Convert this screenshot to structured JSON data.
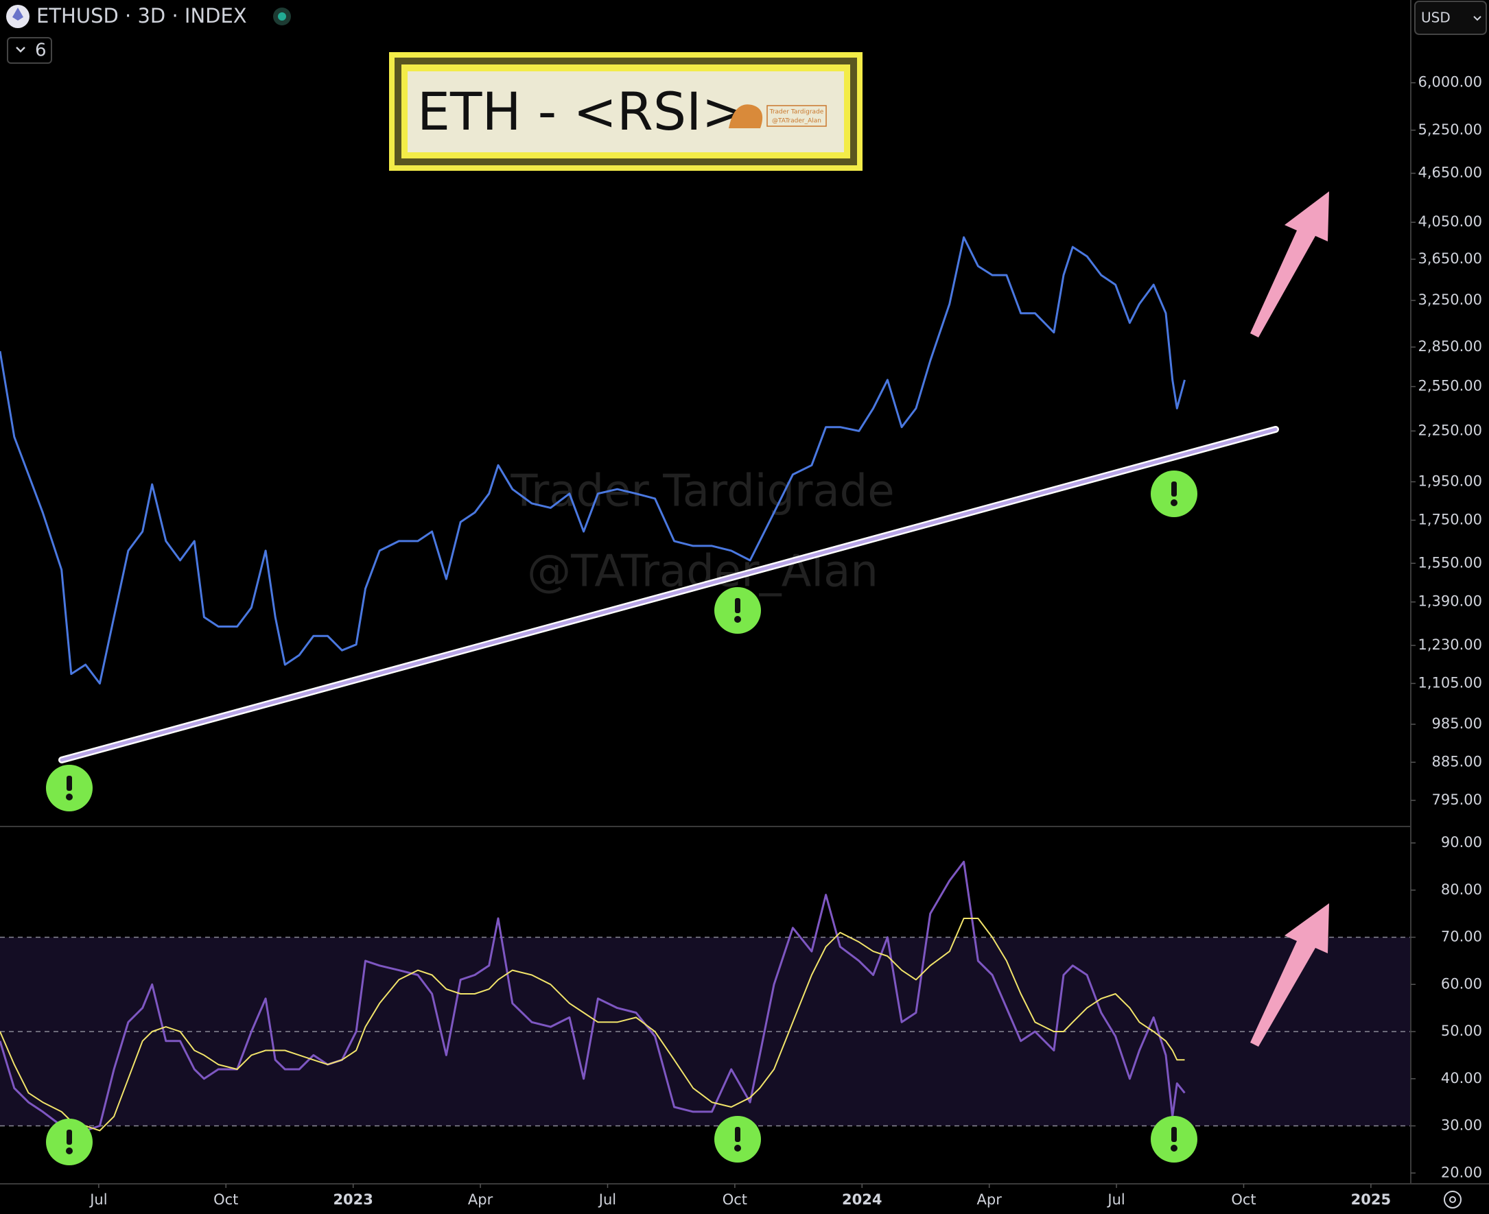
{
  "header": {
    "symbol": "ETHUSD · 3D · INDEX",
    "indicators": 6,
    "currency": "USD"
  },
  "title_box": {
    "title": "ETH - <RSI>",
    "logo_name": "Trader Tardigrade",
    "logo_handle": "@TATrader_Alan"
  },
  "watermark": {
    "line1": "Trader Tardigrade",
    "line2": "@TATrader_Alan"
  },
  "chart_data": [
    {
      "type": "line",
      "log_scale": true,
      "x": [
        2022.306,
        2022.334,
        2022.362,
        2022.39,
        2022.427,
        2022.446,
        2022.474,
        2022.502,
        2022.53,
        2022.558,
        2022.586,
        2022.605,
        2022.632,
        2022.66,
        2022.688,
        2022.707,
        2022.735,
        2022.772,
        2022.8,
        2022.828,
        2022.847,
        2022.866,
        2022.894,
        2022.922,
        2022.95,
        2022.978,
        2023.006,
        2023.024,
        2023.052,
        2023.09,
        2023.127,
        2023.155,
        2023.183,
        2023.211,
        2023.239,
        2023.267,
        2023.285,
        2023.313,
        2023.351,
        2023.388,
        2023.425,
        2023.453,
        2023.481,
        2023.519,
        2023.556,
        2023.593,
        2023.631,
        2023.668,
        2023.705,
        2023.743,
        2023.78,
        2023.799,
        2023.827,
        2023.864,
        2023.901,
        2023.929,
        2023.957,
        2023.994,
        2024.022,
        2024.05,
        2024.078,
        2024.106,
        2024.134,
        2024.172,
        2024.2,
        2024.228,
        2024.256,
        2024.284,
        2024.312,
        2024.34,
        2024.377,
        2024.396,
        2024.414,
        2024.442,
        2024.47,
        2024.498,
        2024.526,
        2024.545,
        2024.573,
        2024.597,
        2024.61,
        2024.619,
        2024.634
      ],
      "series": [
        {
          "color": "#4a78e0",
          "values": [
            2817,
            2213,
            1990,
            1788,
            1522,
            1135,
            1165,
            1105,
            1332,
            1606,
            1695,
            1936,
            1650,
            1563,
            1650,
            1332,
            1297,
            1297,
            1368,
            1606,
            1332,
            1165,
            1197,
            1263,
            1263,
            1213,
            1233,
            1443,
            1606,
            1650,
            1650,
            1695,
            1483,
            1741,
            1788,
            1886,
            2043,
            1910,
            1835,
            1812,
            1886,
            1695,
            1886,
            1910,
            1886,
            1860,
            1650,
            1628,
            1628,
            1606,
            1563,
            1650,
            1788,
            1990,
            2043,
            2275,
            2275,
            2250,
            2398,
            2598,
            2275,
            2398,
            2742,
            3218,
            3882,
            3580,
            3490,
            3490,
            3135,
            3135,
            2970,
            3490,
            3778,
            3680,
            3490,
            3397,
            3051,
            3218,
            3397,
            3135,
            2598,
            2398,
            2598
          ]
        }
      ],
      "xlim": [
        2022.306,
        2025.077
      ],
      "ylim": [
        740,
        7575
      ],
      "yticks": [
        {
          "value": 795,
          "label": "795.00"
        },
        {
          "value": 885,
          "label": "885.00"
        },
        {
          "value": 985,
          "label": "985.00"
        },
        {
          "value": 1105,
          "label": "1,105.00"
        },
        {
          "value": 1230,
          "label": "1,230.00"
        },
        {
          "value": 1390,
          "label": "1,390.00"
        },
        {
          "value": 1550,
          "label": "1,550.00"
        },
        {
          "value": 1750,
          "label": "1,750.00"
        },
        {
          "value": 1950,
          "label": "1,950.00"
        },
        {
          "value": 2250,
          "label": "2,250.00"
        },
        {
          "value": 2550,
          "label": "2,550.00"
        },
        {
          "value": 2850,
          "label": "2,850.00"
        },
        {
          "value": 3250,
          "label": "3,250.00"
        },
        {
          "value": 3650,
          "label": "3,650.00"
        },
        {
          "value": 4050,
          "label": "4,050.00"
        },
        {
          "value": 4650,
          "label": "4,650.00"
        },
        {
          "value": 5250,
          "label": "5,250.00"
        },
        {
          "value": 6000,
          "label": "6,000.00"
        }
      ]
    },
    {
      "type": "line",
      "log_scale": false,
      "x": [
        2022.306,
        2022.334,
        2022.362,
        2022.39,
        2022.427,
        2022.446,
        2022.474,
        2022.502,
        2022.53,
        2022.558,
        2022.586,
        2022.605,
        2022.632,
        2022.66,
        2022.688,
        2022.707,
        2022.735,
        2022.772,
        2022.8,
        2022.828,
        2022.847,
        2022.866,
        2022.894,
        2022.922,
        2022.95,
        2022.978,
        2023.006,
        2023.024,
        2023.052,
        2023.09,
        2023.127,
        2023.155,
        2023.183,
        2023.211,
        2023.239,
        2023.267,
        2023.285,
        2023.313,
        2023.351,
        2023.388,
        2023.425,
        2023.453,
        2023.481,
        2023.519,
        2023.556,
        2023.593,
        2023.631,
        2023.668,
        2023.705,
        2023.743,
        2023.78,
        2023.799,
        2023.827,
        2023.864,
        2023.901,
        2023.929,
        2023.957,
        2023.994,
        2024.022,
        2024.05,
        2024.078,
        2024.106,
        2024.134,
        2024.172,
        2024.2,
        2024.228,
        2024.256,
        2024.284,
        2024.312,
        2024.34,
        2024.377,
        2024.396,
        2024.414,
        2024.442,
        2024.47,
        2024.498,
        2024.526,
        2024.545,
        2024.573,
        2024.597,
        2024.61,
        2024.619,
        2024.634
      ],
      "series": [
        {
          "color": "#7e57c2",
          "values": [
            48,
            38,
            35,
            33,
            30,
            27,
            29,
            30,
            42,
            52,
            55,
            60,
            48,
            48,
            42,
            40,
            42,
            42,
            50,
            57,
            44,
            42,
            42,
            45,
            43,
            44,
            50,
            65,
            64,
            63,
            62,
            58,
            45,
            61,
            62,
            64,
            74,
            56,
            52,
            51,
            53,
            40,
            57,
            55,
            54,
            49,
            34,
            33,
            33,
            42,
            35,
            45,
            60,
            72,
            67,
            79,
            68,
            65,
            62,
            70,
            52,
            54,
            75,
            82,
            86,
            65,
            62,
            55,
            48,
            50,
            46,
            62,
            64,
            62,
            54,
            49,
            40,
            46,
            53,
            45,
            32,
            39,
            37
          ]
        },
        {
          "color": "#f2e46a",
          "values": [
            50,
            43,
            37,
            35,
            33,
            31,
            30,
            29,
            32,
            40,
            48,
            50,
            51,
            50,
            46,
            45,
            43,
            42,
            45,
            46,
            46,
            46,
            45,
            44,
            43,
            44,
            46,
            51,
            56,
            61,
            63,
            62,
            59,
            58,
            58,
            59,
            61,
            63,
            62,
            60,
            56,
            54,
            52,
            52,
            53,
            50,
            44,
            38,
            35,
            34,
            36,
            38,
            42,
            52,
            62,
            68,
            71,
            69,
            67,
            66,
            63,
            61,
            64,
            67,
            74,
            74,
            70,
            65,
            58,
            52,
            50,
            50,
            52,
            55,
            57,
            58,
            55,
            52,
            50,
            48,
            46,
            44,
            44
          ]
        }
      ],
      "reference_lines": [
        70,
        50,
        30
      ],
      "xlim": [
        2022.306,
        2025.077
      ],
      "ylim": [
        18,
        93.2
      ],
      "yticks": [
        {
          "value": 20,
          "label": "20.00"
        },
        {
          "value": 30,
          "label": "30.00"
        },
        {
          "value": 40,
          "label": "40.00"
        },
        {
          "value": 50,
          "label": "50.00"
        },
        {
          "value": 60,
          "label": "60.00"
        },
        {
          "value": 70,
          "label": "70.00"
        },
        {
          "value": 80,
          "label": "80.00"
        },
        {
          "value": 90,
          "label": "90.00"
        }
      ],
      "xticks": [
        {
          "value": 2022.5,
          "label": "Jul"
        },
        {
          "value": 2022.75,
          "label": "Oct"
        },
        2023,
        {
          "value": 2023.25,
          "label": "Apr"
        },
        {
          "value": 2023.5,
          "label": "Jul"
        },
        {
          "value": 2023.75,
          "label": "Oct"
        },
        2024,
        {
          "value": 2024.25,
          "label": "Apr"
        },
        {
          "value": 2024.5,
          "label": "Jul"
        },
        {
          "value": 2024.75,
          "label": "Oct"
        },
        2025
      ]
    }
  ]
}
